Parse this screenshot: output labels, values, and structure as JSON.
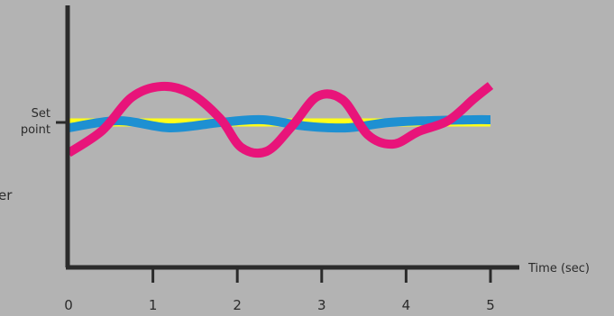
{
  "chart_data": {
    "type": "line",
    "xlabel": "Time (sec)",
    "ylabel_partial": "er",
    "xlim": [
      0,
      5
    ],
    "x_ticks": [
      0,
      1,
      2,
      3,
      4,
      5
    ],
    "x_tick_labels": [
      "0",
      "1",
      "2",
      "3",
      "4",
      "5"
    ],
    "setpoint_label_lines": [
      "Set",
      "point"
    ],
    "setpoint_value": 0,
    "ylim": [
      -1.6,
      1.6
    ],
    "grid": false,
    "series": [
      {
        "color": "#ffff1a",
        "x": [
          0,
          5
        ],
        "y": [
          0,
          0
        ]
      },
      {
        "color": "#1e90d2",
        "x": [
          0,
          0.6,
          1.2,
          1.8,
          2.3,
          2.8,
          3.3,
          3.8,
          4.3,
          4.8,
          5
        ],
        "y": [
          -0.06,
          0.02,
          -0.06,
          0.0,
          0.03,
          -0.04,
          -0.06,
          0.0,
          0.02,
          0.03,
          0.03
        ]
      },
      {
        "color": "#e8147a",
        "x": [
          0,
          0.4,
          0.75,
          1.1,
          1.45,
          1.8,
          2.05,
          2.35,
          2.65,
          2.95,
          3.25,
          3.55,
          3.85,
          4.15,
          4.5,
          4.8,
          5
        ],
        "y": [
          -0.34,
          -0.09,
          0.28,
          0.4,
          0.32,
          0.04,
          -0.28,
          -0.32,
          -0.04,
          0.29,
          0.25,
          -0.14,
          -0.24,
          -0.1,
          0.02,
          0.26,
          0.41
        ]
      }
    ]
  }
}
